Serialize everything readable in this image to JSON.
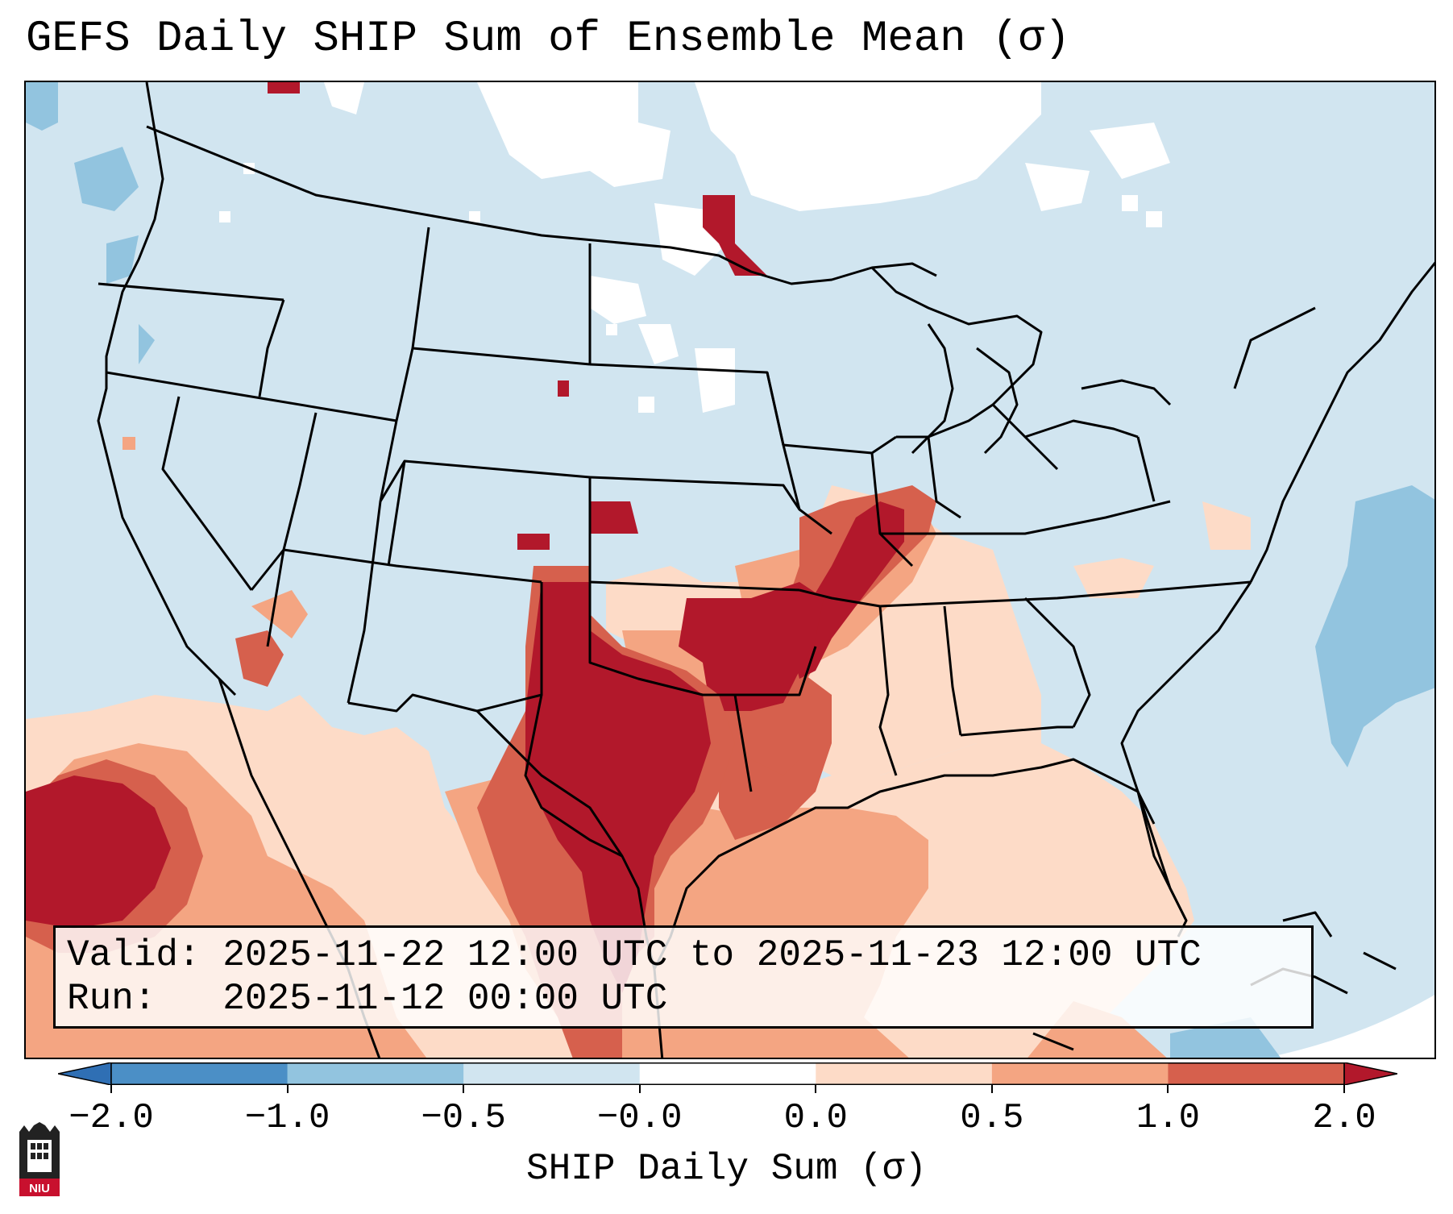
{
  "title": "GEFS Daily SHIP Sum of Ensemble Mean (σ)",
  "info": {
    "valid_label": "Valid:",
    "valid_text": "2025-11-22 12:00 UTC to 2025-11-23 12:00 UTC",
    "run_label": "Run:",
    "run_text": "2025-11-12 00:00 UTC"
  },
  "colorbar": {
    "label": "SHIP Daily Sum (σ)",
    "ticks": [
      "−2.0",
      "−1.0",
      "−0.5",
      "−0.0",
      "0.0",
      "0.5",
      "1.0",
      "2.0"
    ],
    "bins": [
      {
        "color": "#2f6fb4"
      },
      {
        "color": "#4b8fc6"
      },
      {
        "color": "#92c4df"
      },
      {
        "color": "#d1e5f0"
      },
      {
        "color": "#ffffff"
      },
      {
        "color": "#fddbc7"
      },
      {
        "color": "#f4a582"
      },
      {
        "color": "#d6604d"
      },
      {
        "color": "#b2182b"
      }
    ]
  },
  "colors": {
    "background_field": "#d1e5f0",
    "ocean_gulf": "#fddbc7",
    "strong_positive": "#b2182b",
    "moderate_positive": "#d6604d",
    "weak_positive": "#f4a582",
    "negative": "#92c4df"
  },
  "logo": {
    "text": "NIU"
  }
}
